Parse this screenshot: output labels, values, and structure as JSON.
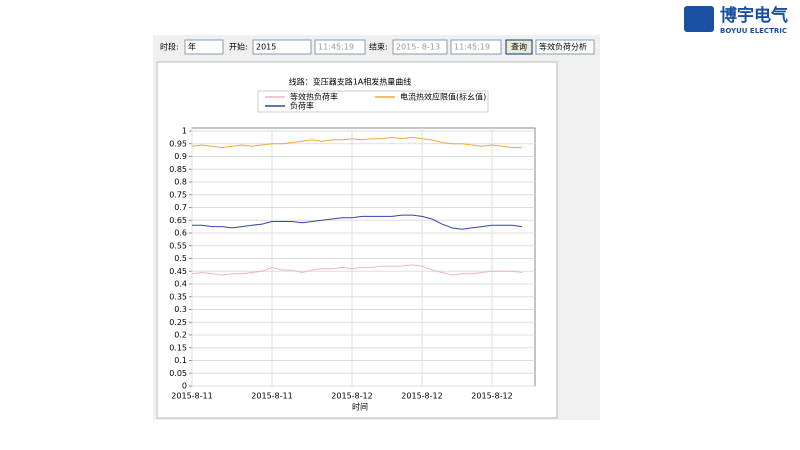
{
  "logo": {
    "name": "博宇电气",
    "subtitle": "BOYUU ELECTRIC"
  },
  "toolbar": {
    "period_label": "时段:",
    "period_value": "年",
    "start_label": "开始:",
    "start_value": "2015",
    "start_time": "11:45:19",
    "end_label": "结束:",
    "end_value": "2015- 8-13",
    "end_time": "11:45:19",
    "query_button": "查询",
    "analysis_value": "等效负荷分析"
  },
  "chart_data": {
    "type": "line",
    "title": "线路：变压器支路1A相发热量曲线",
    "x_label": "时间",
    "categories": [
      "2015-8-11",
      null,
      null,
      null,
      null,
      null,
      null,
      null,
      "2015-8-11",
      null,
      null,
      null,
      null,
      null,
      null,
      null,
      "2015-8-12",
      null,
      null,
      null,
      null,
      null,
      null,
      "2015-8-12",
      null,
      null,
      null,
      null,
      null,
      null,
      "2015-8-12",
      null,
      null,
      null
    ],
    "series": [
      {
        "name": "等效热负荷率",
        "color": "#f0b4c4",
        "values": [
          0.44,
          0.445,
          0.44,
          0.435,
          0.44,
          0.44,
          0.445,
          0.45,
          0.465,
          0.455,
          0.455,
          0.445,
          0.455,
          0.46,
          0.46,
          0.465,
          0.46,
          0.465,
          0.465,
          0.47,
          0.47,
          0.47,
          0.475,
          0.47,
          0.455,
          0.445,
          0.435,
          0.44,
          0.44,
          0.445,
          0.45,
          0.45,
          0.45,
          0.445
        ]
      },
      {
        "name": "电流热效应限值(标幺值)",
        "color": "#eeaa3a",
        "values": [
          0.94,
          0.945,
          0.94,
          0.935,
          0.94,
          0.945,
          0.94,
          0.945,
          0.95,
          0.95,
          0.955,
          0.96,
          0.965,
          0.96,
          0.965,
          0.965,
          0.97,
          0.965,
          0.97,
          0.97,
          0.975,
          0.97,
          0.975,
          0.97,
          0.965,
          0.955,
          0.95,
          0.95,
          0.945,
          0.94,
          0.945,
          0.94,
          0.935,
          0.935
        ]
      },
      {
        "name": "负荷率",
        "color": "#3444aa",
        "values": [
          0.63,
          0.63,
          0.625,
          0.625,
          0.62,
          0.625,
          0.63,
          0.635,
          0.645,
          0.645,
          0.645,
          0.64,
          0.645,
          0.65,
          0.655,
          0.66,
          0.66,
          0.665,
          0.665,
          0.665,
          0.665,
          0.67,
          0.67,
          0.665,
          0.655,
          0.635,
          0.62,
          0.615,
          0.62,
          0.625,
          0.63,
          0.63,
          0.63,
          0.625
        ]
      }
    ],
    "ylim": [
      0,
      1
    ],
    "yticks": [
      0,
      0.05,
      0.1,
      0.15,
      0.2,
      0.25,
      0.3,
      0.35,
      0.4,
      0.45,
      0.5,
      0.55,
      0.6,
      0.65,
      0.7,
      0.75,
      0.8,
      0.85,
      0.9,
      0.95,
      1
    ],
    "grid": true
  }
}
